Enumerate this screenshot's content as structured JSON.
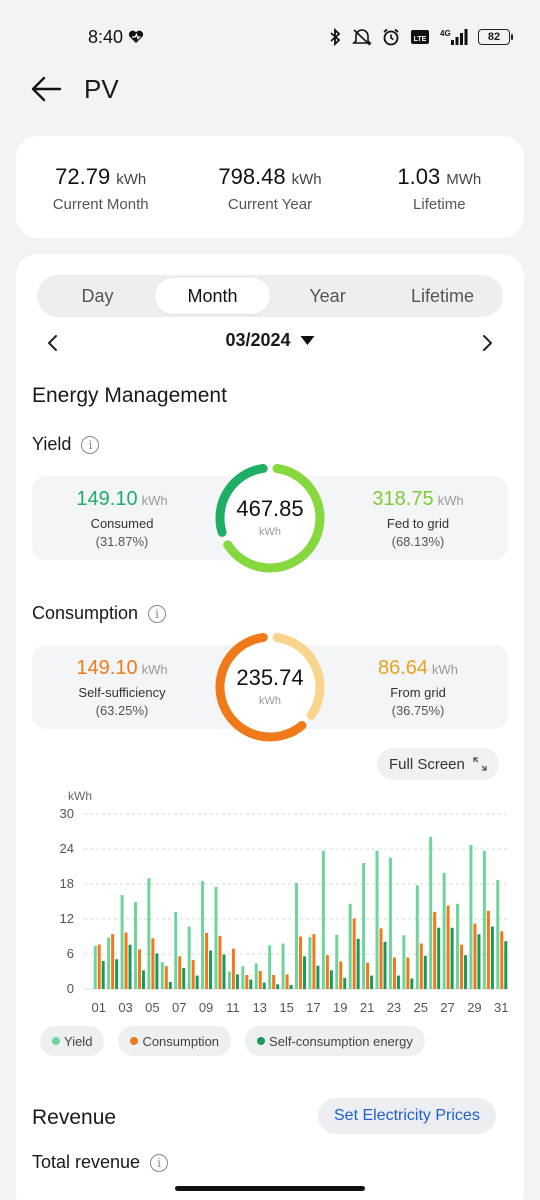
{
  "status_bar": {
    "time": "8:40",
    "battery": "82",
    "network": "4G",
    "volte": "LTE"
  },
  "header": {
    "title": "PV"
  },
  "summary": [
    {
      "value": "72.79",
      "unit": "kWh",
      "label": "Current Month"
    },
    {
      "value": "798.48",
      "unit": "kWh",
      "label": "Current Year"
    },
    {
      "value": "1.03",
      "unit": "MWh",
      "label": "Lifetime"
    }
  ],
  "tabs": [
    {
      "label": "Day"
    },
    {
      "label": "Month",
      "active": true
    },
    {
      "label": "Year"
    },
    {
      "label": "Lifetime"
    }
  ],
  "date_nav": {
    "date": "03/2024"
  },
  "energy_management": {
    "title": "Energy Management",
    "yield": {
      "title": "Yield",
      "center_value": "467.85",
      "center_unit": "kWh",
      "left": {
        "value": "149.10",
        "unit": "kWh",
        "label": "Consumed",
        "pct": "(31.87%)",
        "color": "#1fae66"
      },
      "right": {
        "value": "318.75",
        "unit": "kWh",
        "label": "Fed to grid",
        "pct": "(68.13%)",
        "color": "#7ccb33"
      },
      "fraction": 0.3187
    },
    "consumption": {
      "title": "Consumption",
      "center_value": "235.74",
      "center_unit": "kWh",
      "left": {
        "value": "149.10",
        "unit": "kWh",
        "label": "Self-sufficiency",
        "pct": "(63.25%)",
        "color": "#f07a1a"
      },
      "right": {
        "value": "86.64",
        "unit": "kWh",
        "label": "From grid",
        "pct": "(36.75%)",
        "color": "#e8a21c"
      },
      "fraction": 0.6325
    },
    "fullscreen_label": "Full Screen"
  },
  "chart_data": {
    "type": "bar",
    "ylabel": "kWh",
    "ylim": [
      0,
      30
    ],
    "yticks": [
      0,
      6,
      12,
      18,
      24,
      30
    ],
    "categories": [
      "01",
      "02",
      "03",
      "04",
      "05",
      "06",
      "07",
      "08",
      "09",
      "10",
      "11",
      "12",
      "13",
      "14",
      "15",
      "16",
      "17",
      "18",
      "19",
      "20",
      "21",
      "22",
      "23",
      "24",
      "25",
      "26",
      "27",
      "28",
      "29",
      "30",
      "31"
    ],
    "x_tick_labels": [
      "01",
      "03",
      "05",
      "07",
      "09",
      "11",
      "13",
      "15",
      "17",
      "19",
      "21",
      "23",
      "25",
      "27",
      "29",
      "31"
    ],
    "series": [
      {
        "name": "Yield",
        "color": "#6fd39c",
        "values": [
          7.4,
          8.8,
          16.1,
          14.9,
          19.0,
          4.6,
          13.2,
          10.7,
          18.5,
          17.5,
          3.0,
          3.9,
          4.4,
          7.5,
          7.8,
          18.2,
          8.9,
          23.7,
          9.3,
          14.6,
          21.6,
          23.7,
          22.5,
          9.2,
          17.8,
          26.1,
          19.9,
          14.6,
          24.7,
          23.7,
          18.7
        ]
      },
      {
        "name": "Consumption",
        "color": "#f07a1a",
        "values": [
          7.6,
          9.4,
          9.7,
          6.8,
          8.7,
          3.9,
          5.6,
          5.0,
          9.6,
          9.1,
          6.9,
          2.4,
          3.1,
          2.4,
          2.5,
          9.0,
          9.4,
          5.8,
          4.7,
          12.1,
          4.5,
          10.4,
          5.4,
          5.4,
          7.8,
          13.2,
          14.3,
          7.6,
          11.2,
          13.4,
          9.9
        ]
      },
      {
        "name": "Self-consumption energy",
        "color": "#1a9a5a",
        "values": [
          4.8,
          5.1,
          7.6,
          3.2,
          6.1,
          1.2,
          3.6,
          2.3,
          6.6,
          5.9,
          2.5,
          1.6,
          1.1,
          0.8,
          0.7,
          5.6,
          4.0,
          3.2,
          1.9,
          8.6,
          2.3,
          8.1,
          2.3,
          1.8,
          5.7,
          10.5,
          10.5,
          5.8,
          9.4,
          10.7,
          8.2
        ]
      }
    ]
  },
  "legend": [
    {
      "label": "Yield",
      "color": "#6fd39c"
    },
    {
      "label": "Consumption",
      "color": "#f07a1a"
    },
    {
      "label": "Self-consumption energy",
      "color": "#1a9a5a"
    }
  ],
  "revenue": {
    "title": "Revenue",
    "set_prices_label": "Set Electricity Prices",
    "total_label": "Total revenue"
  }
}
